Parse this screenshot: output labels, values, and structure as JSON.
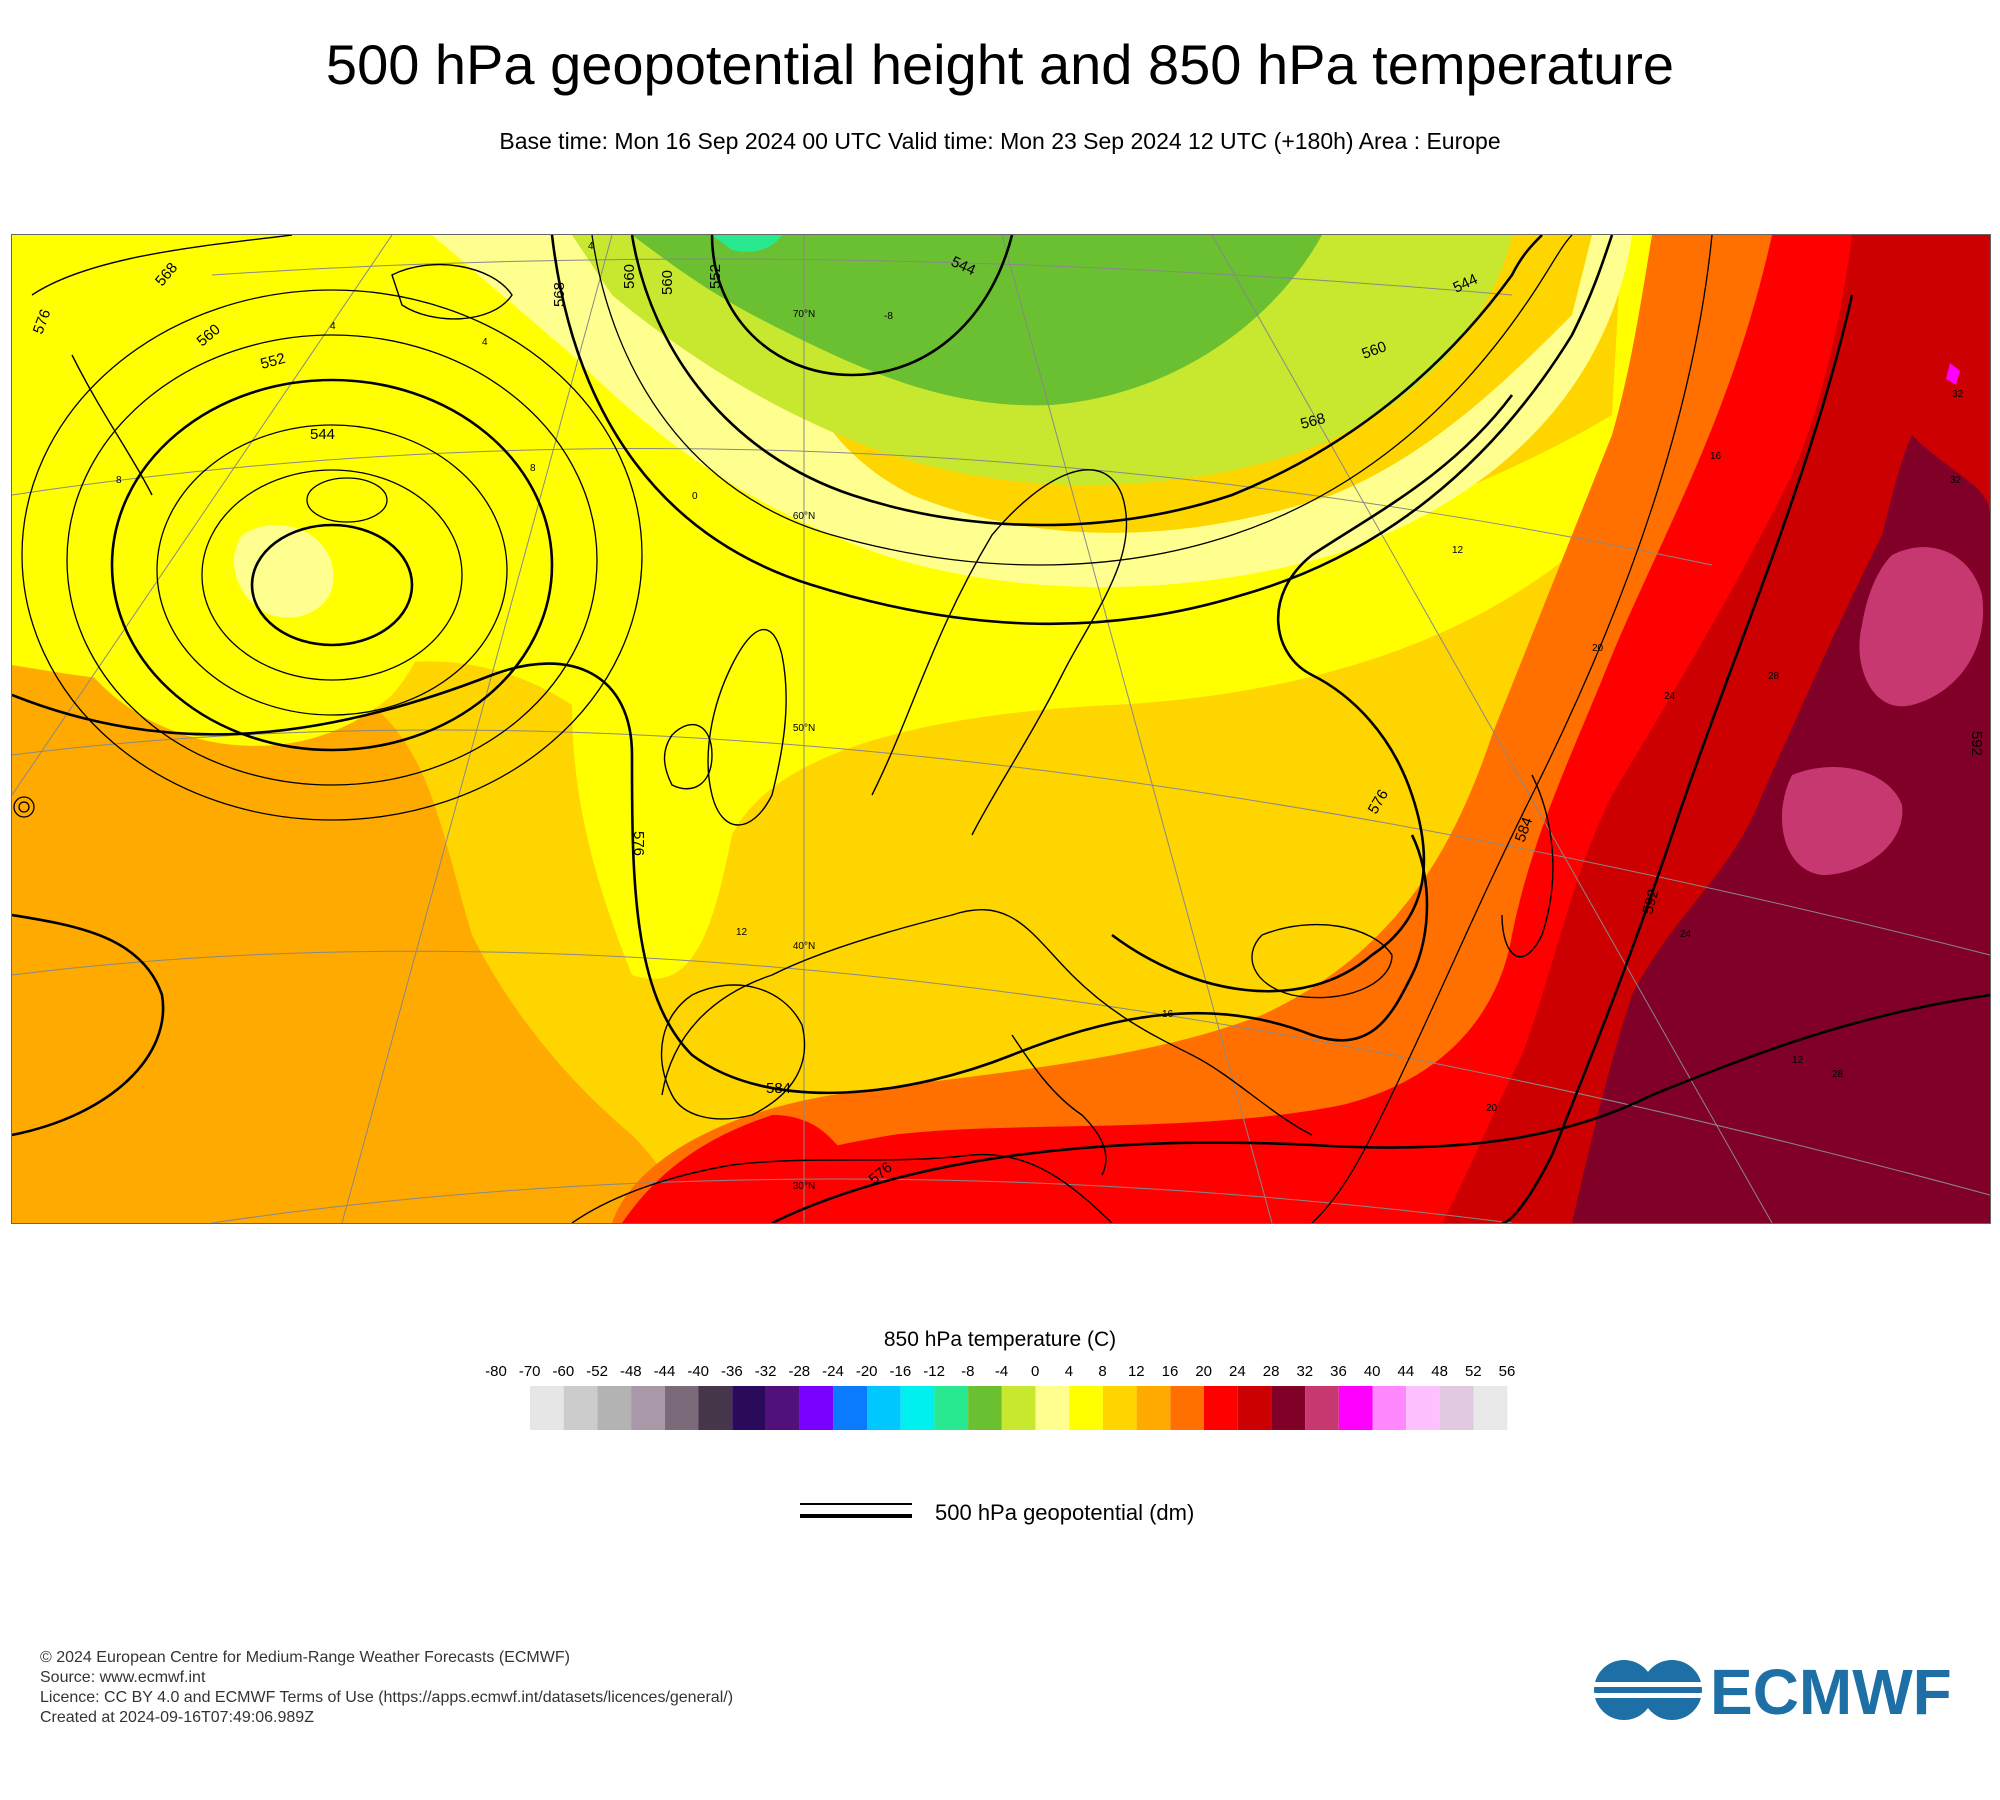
{
  "title": "500 hPa geopotential height and 850 hPa temperature",
  "subtitle": "Base time: Mon 16 Sep 2024 00 UTC Valid time: Mon 23 Sep 2024 12 UTC (+180h) Area : Europe",
  "map": {
    "contour_labels": [
      "576",
      "568",
      "560",
      "552",
      "544",
      "560",
      "568",
      "560",
      "552",
      "544",
      "544",
      "552",
      "560",
      "568",
      "576",
      "576",
      "584",
      "592",
      "592",
      "584",
      "576"
    ],
    "temperature_labels": [
      "4",
      "4",
      "4",
      "8",
      "0",
      "-8",
      "12",
      "12",
      "16",
      "16",
      "20",
      "24",
      "28",
      "32",
      "32",
      "12",
      "28",
      "20",
      "24",
      "8"
    ],
    "latitude_labels": [
      "70°N",
      "60°N",
      "50°N",
      "40°N",
      "30°N"
    ]
  },
  "legend": {
    "title": "850 hPa temperature (C)",
    "ticks": [
      "-80",
      "-70",
      "-60",
      "-52",
      "-48",
      "-44",
      "-40",
      "-36",
      "-32",
      "-28",
      "-24",
      "-20",
      "-16",
      "-12",
      "-8",
      "-4",
      "0",
      "4",
      "8",
      "12",
      "16",
      "20",
      "24",
      "28",
      "32",
      "36",
      "40",
      "44",
      "48",
      "52",
      "56"
    ],
    "colors": [
      "#e6e6e6",
      "#cccccc",
      "#b3b3b3",
      "#a898a8",
      "#7a6a7a",
      "#46364a",
      "#2a0a5a",
      "#52107a",
      "#7a00ff",
      "#0a7aff",
      "#00c8ff",
      "#00f0f0",
      "#28e890",
      "#6ac030",
      "#c8e830",
      "#ffff90",
      "#ffff00",
      "#ffd500",
      "#ffaa00",
      "#ff7000",
      "#ff0000",
      "#cc0000",
      "#800028",
      "#c83870",
      "#ff00ff",
      "#ff88ff",
      "#ffc0ff",
      "#e0c8e0",
      "#e8e8e8"
    ]
  },
  "contour_key": {
    "label": "500 hPa geopotential (dm)"
  },
  "footer": {
    "line1": "© 2024 European Centre for Medium-Range Weather Forecasts (ECMWF)",
    "line2": "Source: www.ecmwf.int",
    "line3": "Licence: CC BY 4.0 and ECMWF Terms of Use (https://apps.ecmwf.int/datasets/licences/general/)",
    "line4": "Created at 2024-09-16T07:49:06.989Z"
  },
  "logo": {
    "text": "ECMWF",
    "color": "#1d6fa5"
  }
}
